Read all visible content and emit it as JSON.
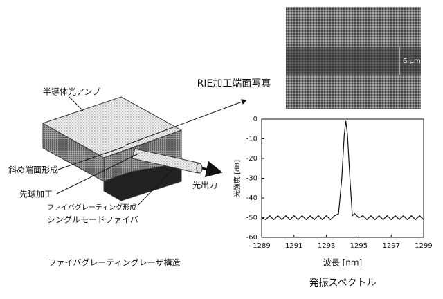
{
  "diagram": {
    "amp_label": "半導体光アンプ",
    "facet_label": "斜め端面形成",
    "lens_label": "先球加工",
    "grating_label": "ファイバグレーティング形成",
    "fiber_label": "シングルモードファイバ",
    "output_label": "光出力",
    "caption": "ファイバグレーティングレーザ構造"
  },
  "photo": {
    "title": "RIE加工端面写真",
    "scale": "6 μm"
  },
  "chart_data": {
    "type": "line",
    "title": "発振スペクトル",
    "x_label": "波長 [nm]",
    "y_label": "光強度 [dB]",
    "color": "#111111",
    "x": [
      1289,
      1289.25,
      1289.5,
      1289.75,
      1290,
      1290.25,
      1290.5,
      1290.75,
      1291,
      1291.25,
      1291.5,
      1291.75,
      1292,
      1292.25,
      1292.5,
      1292.75,
      1293,
      1293.25,
      1293.5,
      1293.75,
      1293.95,
      1294.1,
      1294.2,
      1294.3,
      1294.45,
      1294.6,
      1294.75,
      1295,
      1295.25,
      1295.5,
      1295.75,
      1296,
      1296.25,
      1296.5,
      1296.75,
      1297,
      1297.25,
      1297.5,
      1297.75,
      1298,
      1298.25,
      1298.5,
      1298.75,
      1299
    ],
    "values": [
      -50,
      -51,
      -49,
      -51,
      -49,
      -51,
      -49,
      -51,
      -49,
      -51,
      -49,
      -51,
      -49,
      -51,
      -49,
      -51,
      -49,
      -51,
      -49,
      -48,
      -30,
      -8,
      -1,
      -8,
      -30,
      -49,
      -48,
      -50,
      -49,
      -51,
      -49,
      -51,
      -49,
      -51,
      -49,
      -51,
      -49,
      -51,
      -49,
      -51,
      -49,
      -51,
      -49,
      -51
    ],
    "xlim": [
      1289,
      1299
    ],
    "xticks": [
      1289,
      1291,
      1293,
      1295,
      1297,
      1299
    ],
    "ylim": [
      -60,
      0
    ],
    "yticks": [
      0,
      -10,
      -20,
      -30,
      -40,
      -50,
      -60
    ]
  }
}
